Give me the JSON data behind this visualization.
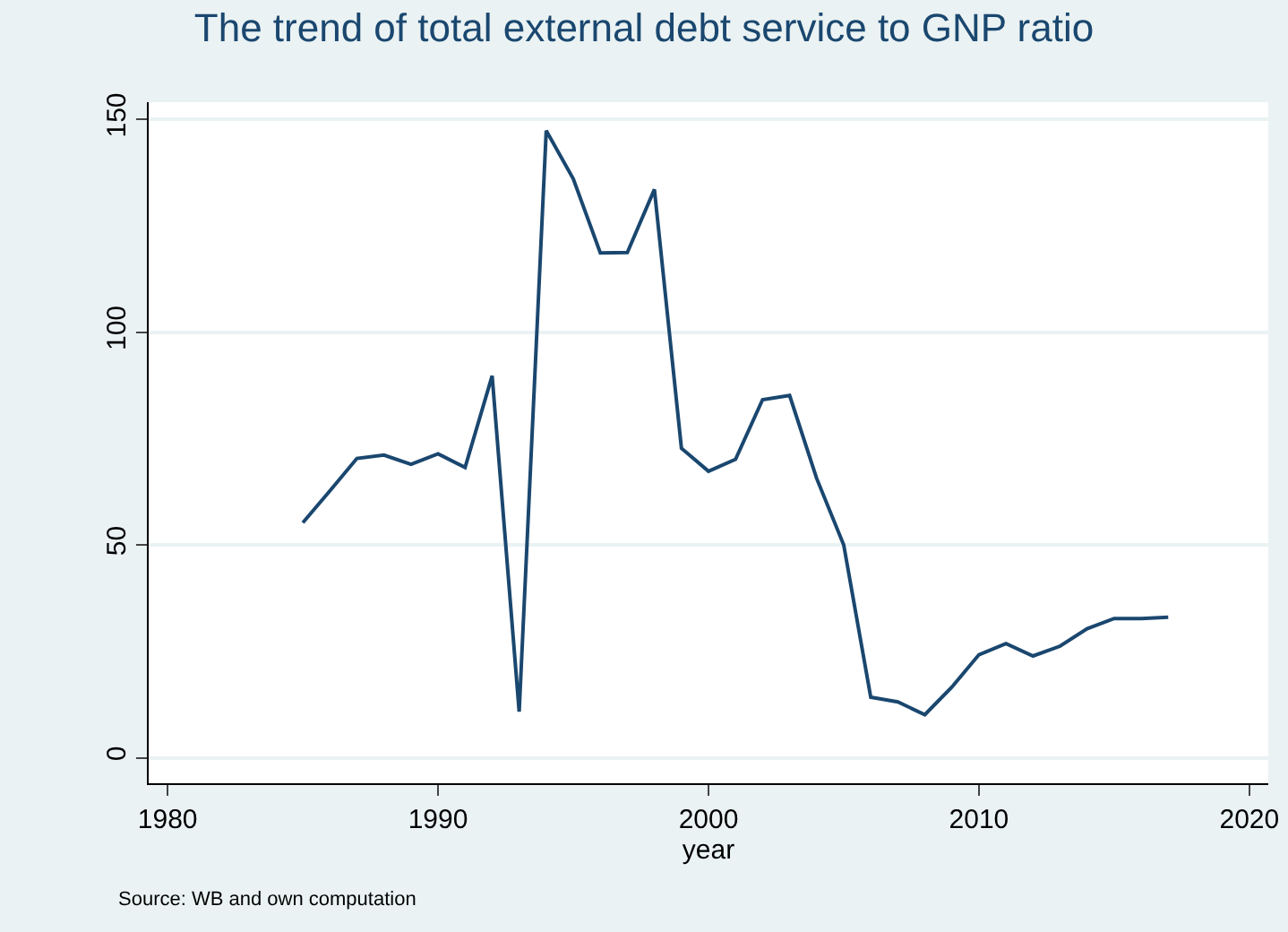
{
  "chart_data": {
    "type": "line",
    "title": "The trend of total external debt service to GNP ratio",
    "xlabel": "year",
    "x": [
      1985,
      1986,
      1987,
      1988,
      1989,
      1990,
      1991,
      1992,
      1993,
      1994,
      1995,
      1996,
      1997,
      1998,
      1999,
      2000,
      2001,
      2002,
      2003,
      2004,
      2005,
      2006,
      2007,
      2008,
      2009,
      2010,
      2011,
      2012,
      2013,
      2014,
      2015,
      2016,
      2017
    ],
    "series": [
      {
        "color": "#1a476f",
        "values": [
          55.2,
          62.7,
          70.3,
          71.1,
          68.9,
          71.4,
          68.2,
          89.7,
          10.8,
          147.3,
          136,
          118.6,
          118.7,
          133.5,
          72.7,
          67.3,
          70.1,
          84.1,
          85.1,
          65.6,
          50,
          14.2,
          13.1,
          10.1,
          16.6,
          24.2,
          26.8,
          23.9,
          26.2,
          30.3,
          32.7,
          32.7,
          33
        ]
      }
    ],
    "xlim": [
      1979.3,
      2020.7
    ],
    "xticks": [
      1980,
      1990,
      2000,
      2010,
      2020
    ],
    "ylim": [
      -6,
      154
    ],
    "yticks": [
      0,
      50,
      100,
      150
    ],
    "grid": "y",
    "marker": "none",
    "line_style": "solid",
    "annotations": [
      "Source: WB and own computation"
    ]
  }
}
